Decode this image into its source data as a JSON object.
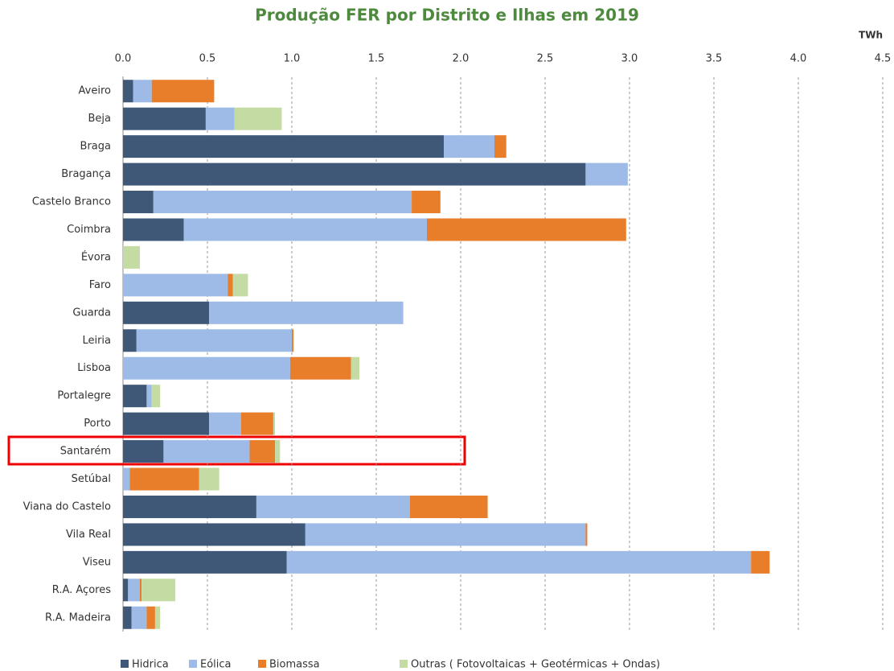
{
  "chart_data": {
    "type": "stacked_bar_horizontal",
    "title": "Produção FER por Distrito e Ilhas em 2019",
    "unit_label": "TWh",
    "categories": [
      "Aveiro",
      "Beja",
      "Braga",
      "Bragança",
      "Castelo Branco",
      "Coimbra",
      "Évora",
      "Faro",
      "Guarda",
      "Leiria",
      "Lisboa",
      "Portalegre",
      "Porto",
      "Santarém",
      "Setúbal",
      "Viana do Castelo",
      "Vila Real",
      "Viseu",
      "R.A. Açores",
      "R.A. Madeira"
    ],
    "series": [
      {
        "name": "Hidrica",
        "color": "#3f5877",
        "values": [
          0.06,
          0.49,
          1.9,
          2.74,
          0.18,
          0.36,
          0,
          0,
          0.51,
          0.08,
          0,
          0.14,
          0.51,
          0.24,
          0,
          0.79,
          1.08,
          0.97,
          0.03,
          0.05
        ]
      },
      {
        "name": "Eólica",
        "color": "#9dbbe6",
        "values": [
          0.11,
          0.17,
          0.3,
          0.25,
          1.53,
          1.44,
          0,
          0.62,
          1.15,
          0.92,
          0.99,
          0.03,
          0.19,
          0.51,
          0.04,
          0.91,
          1.66,
          2.75,
          0.07,
          0.09
        ]
      },
      {
        "name": "Biomassa",
        "color": "#e87d2a",
        "values": [
          0.37,
          0,
          0.07,
          0,
          0.17,
          1.18,
          0,
          0.03,
          0,
          0.01,
          0.36,
          0,
          0.19,
          0.15,
          0.41,
          0.46,
          0.01,
          0.11,
          0.01,
          0.05
        ]
      },
      {
        "name": "Outras ( Fotovoltaicas + Geotérmicas + Ondas)",
        "color": "#c5dba4",
        "values": [
          0,
          0.28,
          0,
          0,
          0,
          0,
          0.1,
          0.09,
          0,
          0,
          0.05,
          0.05,
          0.01,
          0.03,
          0.12,
          0,
          0,
          0,
          0.2,
          0.03
        ]
      }
    ],
    "xlim": [
      0,
      4.5
    ],
    "xticks": [
      {
        "value": 0,
        "label": "0.0"
      },
      0.5,
      {
        "value": 1,
        "label": "1.0"
      },
      1.5,
      {
        "value": 2,
        "label": "2.0"
      },
      2.5,
      {
        "value": 3,
        "label": "3.0"
      },
      3.5,
      {
        "value": 4,
        "label": "4.0"
      },
      4.5
    ],
    "grid": true
  }
}
